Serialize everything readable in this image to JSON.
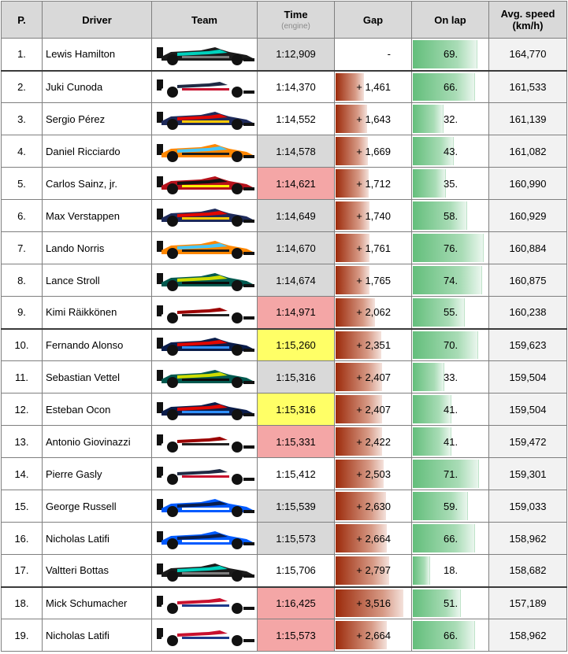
{
  "headers": {
    "pos": "P.",
    "driver": "Driver",
    "team": "Team",
    "time": "Time",
    "time_sub": "(engine)",
    "gap": "Gap",
    "lap": "On lap",
    "speed": "Avg. speed (km/h)"
  },
  "rows": [
    {
      "pos": "1.",
      "driver": "Lewis Hamilton",
      "time": "1:12,909",
      "gap": "-",
      "gap_value": 0,
      "lap": "69.",
      "lap_value": 69,
      "speed": "164,770",
      "time_bg": "#d9d9d9",
      "car": {
        "body": "#1b1b1b",
        "accent": "#00d2be",
        "stripe": "#7d7d7d"
      }
    },
    {
      "pos": "2.",
      "driver": "Juki Cunoda",
      "time": "1:14,370",
      "gap": "+ 1,461",
      "gap_value": 1.461,
      "lap": "66.",
      "lap_value": 66,
      "speed": "161,533",
      "time_bg": "#ffffff",
      "car": {
        "body": "#ffffff",
        "accent": "#1f2a44",
        "stripe": "#c8102e"
      }
    },
    {
      "pos": "3.",
      "driver": "Sergio Pérez",
      "time": "1:14,552",
      "gap": "+ 1,643",
      "gap_value": 1.643,
      "lap": "32.",
      "lap_value": 32,
      "speed": "161,139",
      "time_bg": "#ffffff",
      "car": {
        "body": "#1e2a5a",
        "accent": "#e10600",
        "stripe": "#ffc906"
      }
    },
    {
      "pos": "4.",
      "driver": "Daniel Ricciardo",
      "time": "1:14,578",
      "gap": "+ 1,669",
      "gap_value": 1.669,
      "lap": "43.",
      "lap_value": 43,
      "speed": "161,082",
      "time_bg": "#d9d9d9",
      "car": {
        "body": "#ff8700",
        "accent": "#47c7fc",
        "stripe": "#1a1a1a"
      }
    },
    {
      "pos": "5.",
      "driver": "Carlos Sainz, jr.",
      "time": "1:14,621",
      "gap": "+ 1,712",
      "gap_value": 1.712,
      "lap": "35.",
      "lap_value": 35,
      "speed": "160,990",
      "time_bg": "#f4a6a6",
      "car": {
        "body": "#b5121b",
        "accent": "#111111",
        "stripe": "#fff200"
      }
    },
    {
      "pos": "6.",
      "driver": "Max Verstappen",
      "time": "1:14,649",
      "gap": "+ 1,740",
      "gap_value": 1.74,
      "lap": "58.",
      "lap_value": 58,
      "speed": "160,929",
      "time_bg": "#d9d9d9",
      "car": {
        "body": "#1e2a5a",
        "accent": "#e10600",
        "stripe": "#ffc906"
      }
    },
    {
      "pos": "7.",
      "driver": "Lando Norris",
      "time": "1:14,670",
      "gap": "+ 1,761",
      "gap_value": 1.761,
      "lap": "76.",
      "lap_value": 76,
      "speed": "160,884",
      "time_bg": "#d9d9d9",
      "car": {
        "body": "#ff8700",
        "accent": "#47c7fc",
        "stripe": "#1a1a1a"
      }
    },
    {
      "pos": "8.",
      "driver": "Lance Stroll",
      "time": "1:14,674",
      "gap": "+ 1,765",
      "gap_value": 1.765,
      "lap": "74.",
      "lap_value": 74,
      "speed": "160,875",
      "time_bg": "#d9d9d9",
      "car": {
        "body": "#00594f",
        "accent": "#cedc00",
        "stripe": "#0b0b0b"
      }
    },
    {
      "pos": "9.",
      "driver": "Kimi Räikkönen",
      "time": "1:14,971",
      "gap": "+ 2,062",
      "gap_value": 2.062,
      "lap": "55.",
      "lap_value": 55,
      "speed": "160,238",
      "time_bg": "#f4a6a6",
      "car": {
        "body": "#ffffff",
        "accent": "#9b0000",
        "stripe": "#222222"
      }
    },
    {
      "pos": "10.",
      "driver": "Fernando Alonso",
      "time": "1:15,260",
      "gap": "+ 2,351",
      "gap_value": 2.351,
      "lap": "70.",
      "lap_value": 70,
      "speed": "159,623",
      "time_bg": "#ffff66",
      "car": {
        "body": "#0a1c4a",
        "accent": "#e10600",
        "stripe": "#2f8fff"
      }
    },
    {
      "pos": "11.",
      "driver": "Sebastian Vettel",
      "time": "1:15,316",
      "gap": "+ 2,407",
      "gap_value": 2.407,
      "lap": "33.",
      "lap_value": 33,
      "speed": "159,504",
      "time_bg": "#d9d9d9",
      "car": {
        "body": "#00594f",
        "accent": "#cedc00",
        "stripe": "#0b0b0b"
      }
    },
    {
      "pos": "12.",
      "driver": "Esteban Ocon",
      "time": "1:15,316",
      "gap": "+ 2,407",
      "gap_value": 2.407,
      "lap": "41.",
      "lap_value": 41,
      "speed": "159,504",
      "time_bg": "#ffff66",
      "car": {
        "body": "#0a1c4a",
        "accent": "#e10600",
        "stripe": "#2f8fff"
      }
    },
    {
      "pos": "13.",
      "driver": "Antonio Giovinazzi",
      "time": "1:15,331",
      "gap": "+ 2,422",
      "gap_value": 2.422,
      "lap": "41.",
      "lap_value": 41,
      "speed": "159,472",
      "time_bg": "#f4a6a6",
      "car": {
        "body": "#ffffff",
        "accent": "#9b0000",
        "stripe": "#222222"
      }
    },
    {
      "pos": "14.",
      "driver": "Pierre Gasly",
      "time": "1:15,412",
      "gap": "+ 2,503",
      "gap_value": 2.503,
      "lap": "71.",
      "lap_value": 71,
      "speed": "159,301",
      "time_bg": "#ffffff",
      "car": {
        "body": "#ffffff",
        "accent": "#1f2a44",
        "stripe": "#c8102e"
      }
    },
    {
      "pos": "15.",
      "driver": "George Russell",
      "time": "1:15,539",
      "gap": "+ 2,630",
      "gap_value": 2.63,
      "lap": "59.",
      "lap_value": 59,
      "speed": "159,033",
      "time_bg": "#d9d9d9",
      "car": {
        "body": "#005aff",
        "accent": "#0b1e4d",
        "stripe": "#ffffff"
      }
    },
    {
      "pos": "16.",
      "driver": "Nicholas Latifi",
      "time": "1:15,573",
      "gap": "+ 2,664",
      "gap_value": 2.664,
      "lap": "66.",
      "lap_value": 66,
      "speed": "158,962",
      "time_bg": "#d9d9d9",
      "car": {
        "body": "#005aff",
        "accent": "#0b1e4d",
        "stripe": "#ffffff"
      }
    },
    {
      "pos": "17.",
      "driver": "Valtteri Bottas",
      "time": "1:15,706",
      "gap": "+ 2,797",
      "gap_value": 2.797,
      "lap": "18.",
      "lap_value": 18,
      "speed": "158,682",
      "time_bg": "#ffffff",
      "car": {
        "body": "#1b1b1b",
        "accent": "#00d2be",
        "stripe": "#7d7d7d"
      }
    },
    {
      "pos": "18.",
      "driver": "Mick Schumacher",
      "time": "1:16,425",
      "gap": "+ 3,516",
      "gap_value": 3.516,
      "lap": "51.",
      "lap_value": 51,
      "speed": "157,189",
      "time_bg": "#f4a6a6",
      "car": {
        "body": "#ffffff",
        "accent": "#c8102e",
        "stripe": "#1e3a8a"
      }
    },
    {
      "pos": "19.",
      "driver": "Nicholas Latifi",
      "time": "1:15,573",
      "gap": "+ 2,664",
      "gap_value": 2.664,
      "lap": "66.",
      "lap_value": 66,
      "speed": "158,962",
      "time_bg": "#f4a6a6",
      "car": {
        "body": "#ffffff",
        "accent": "#c8102e",
        "stripe": "#1e3a8a"
      }
    }
  ],
  "separators_before": [
    2,
    10,
    18
  ],
  "scales": {
    "gap_max": 3.516,
    "lap_max": 80
  }
}
